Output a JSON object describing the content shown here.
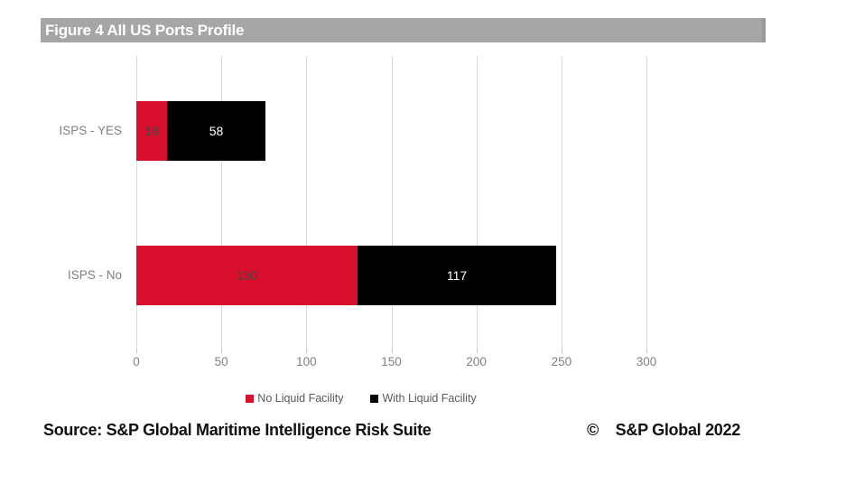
{
  "title_bar": {
    "text": "Figure 4 All US Ports Profile",
    "bg": "#a6a6a6"
  },
  "chart_data": {
    "type": "bar",
    "orientation": "horizontal",
    "stacked": true,
    "categories": [
      "ISPS - YES",
      "ISPS - No"
    ],
    "series": [
      {
        "name": "No Liquid Facility",
        "color": "#d8102d",
        "label_color": "#454545",
        "values": [
          18,
          130
        ]
      },
      {
        "name": "With Liquid Facility",
        "color": "#000000",
        "label_color": "#ffffff",
        "values": [
          58,
          117
        ]
      }
    ],
    "xlim": [
      0,
      300
    ],
    "xticks": [
      0,
      50,
      100,
      150,
      200,
      250,
      300
    ],
    "grid": "vertical",
    "grid_color": "#d9d9d9",
    "legend_position": "bottom"
  },
  "footer": {
    "source": "Source: S&P Global Maritime Intelligence Risk Suite",
    "copyright_symbol": "©",
    "copyright_text": "S&P Global 2022"
  }
}
